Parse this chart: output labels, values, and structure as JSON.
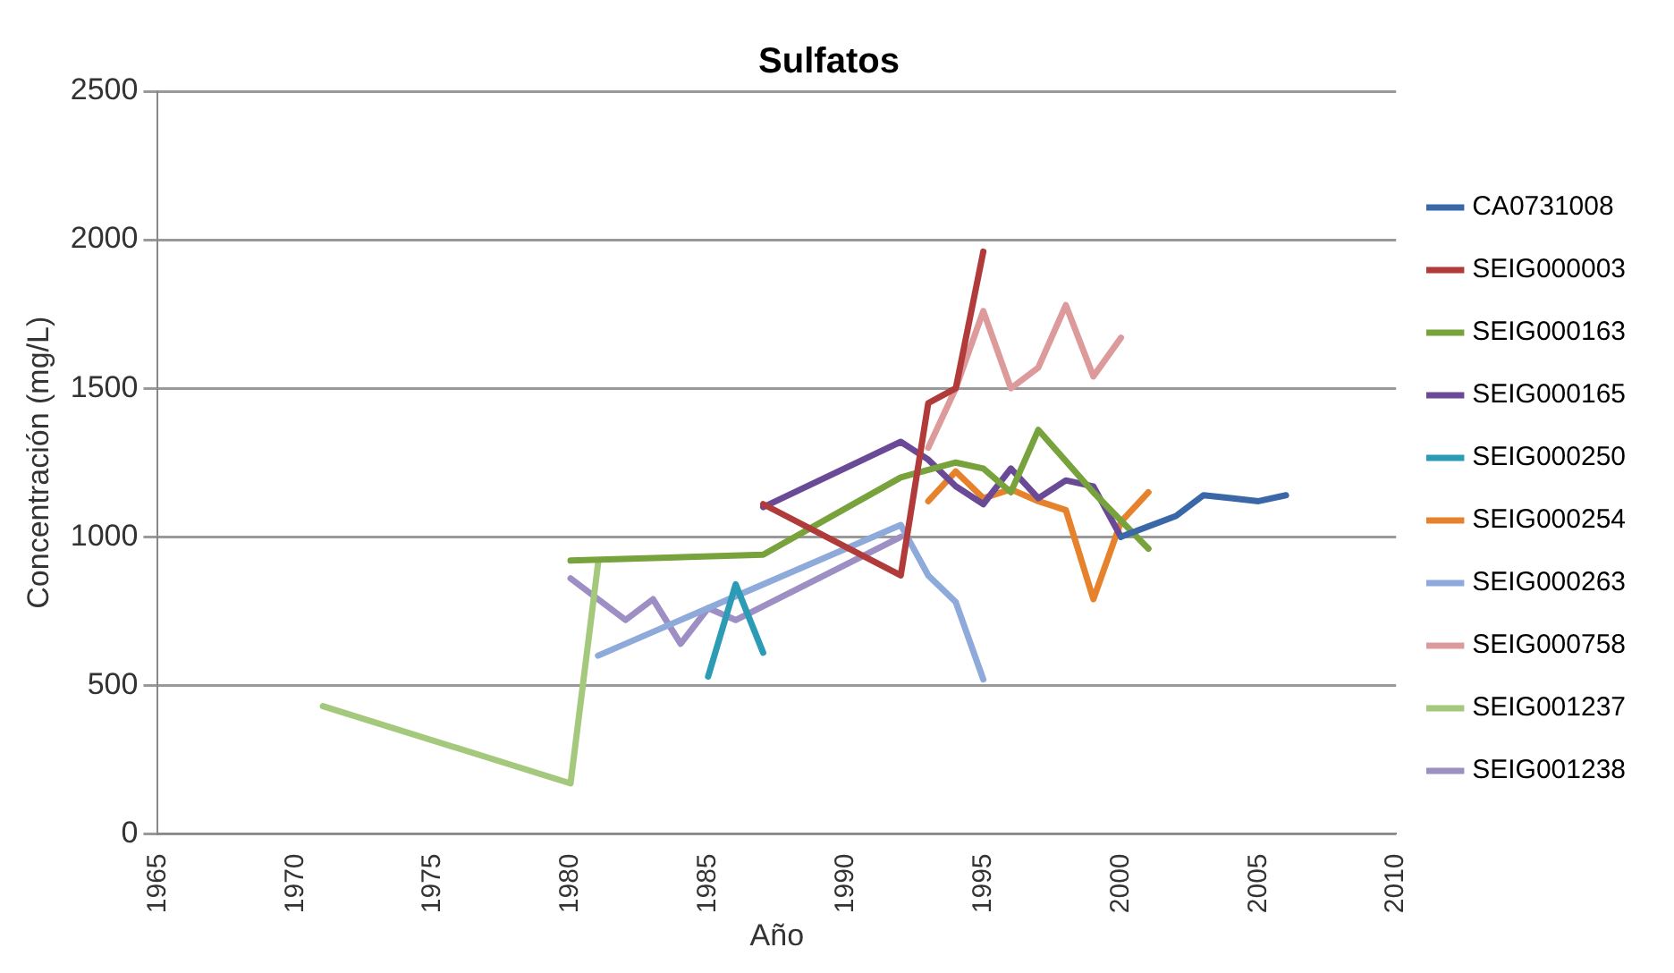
{
  "chart_data": {
    "type": "line",
    "title": "Sulfatos",
    "xlabel": "Año",
    "ylabel": "Concentración (mg/L)",
    "xlim": [
      1965,
      2010
    ],
    "xticks": [
      1965,
      1970,
      1975,
      1980,
      1985,
      1990,
      1995,
      2000,
      2005,
      2010
    ],
    "ylim": [
      0,
      2500
    ],
    "yticks": [
      0,
      500,
      1000,
      1500,
      2000,
      2500
    ],
    "grid": "y",
    "legend": "right",
    "marker": "none",
    "series": [
      {
        "name": "CA0731008",
        "color": "#3a67a8",
        "x": [
          2000,
          2002,
          2003,
          2004,
          2005,
          2006
        ],
        "values": [
          1000,
          1070,
          1140,
          1130,
          1120,
          1140
        ]
      },
      {
        "name": "SEIG000003",
        "color": "#b13b3a",
        "x": [
          1987,
          1992,
          1993,
          1994,
          1995
        ],
        "values": [
          1110,
          870,
          1450,
          1500,
          1960
        ]
      },
      {
        "name": "SEIG000163",
        "color": "#77a23c",
        "x": [
          1980,
          1987,
          1992,
          1994,
          1995,
          1996,
          1997,
          1999,
          2001
        ],
        "values": [
          920,
          940,
          1200,
          1250,
          1230,
          1150,
          1360,
          1150,
          960
        ]
      },
      {
        "name": "SEIG000165",
        "color": "#6a4a97",
        "x": [
          1987,
          1992,
          1993,
          1994,
          1995,
          1996,
          1997,
          1998,
          1999,
          2000
        ],
        "values": [
          1100,
          1320,
          1260,
          1170,
          1110,
          1230,
          1130,
          1190,
          1170,
          1000
        ]
      },
      {
        "name": "SEIG000250",
        "color": "#2c9bb5",
        "x": [
          1985,
          1986,
          1987
        ],
        "values": [
          530,
          840,
          610
        ]
      },
      {
        "name": "SEIG000254",
        "color": "#e6822c",
        "x": [
          1993,
          1994,
          1995,
          1996,
          1997,
          1998,
          1999,
          2000,
          2001
        ],
        "values": [
          1120,
          1220,
          1130,
          1160,
          1120,
          1090,
          790,
          1050,
          1150
        ]
      },
      {
        "name": "SEIG000263",
        "color": "#8eaadb",
        "x": [
          1981,
          1992,
          1993,
          1994,
          1995
        ],
        "values": [
          600,
          1040,
          870,
          780,
          520
        ]
      },
      {
        "name": "SEIG000758",
        "color": "#dd9a9a",
        "x": [
          1993,
          1994,
          1995,
          1996,
          1997,
          1998,
          1999,
          2000
        ],
        "values": [
          1300,
          1500,
          1760,
          1500,
          1570,
          1780,
          1540,
          1670
        ]
      },
      {
        "name": "SEIG001237",
        "color": "#a4c97c",
        "x": [
          1971,
          1980,
          1981
        ],
        "values": [
          430,
          170,
          910
        ]
      },
      {
        "name": "SEIG001238",
        "color": "#9d8fc4",
        "x": [
          1980,
          1982,
          1983,
          1984,
          1985,
          1986,
          1992
        ],
        "values": [
          860,
          720,
          790,
          640,
          760,
          720,
          1000
        ]
      }
    ]
  }
}
